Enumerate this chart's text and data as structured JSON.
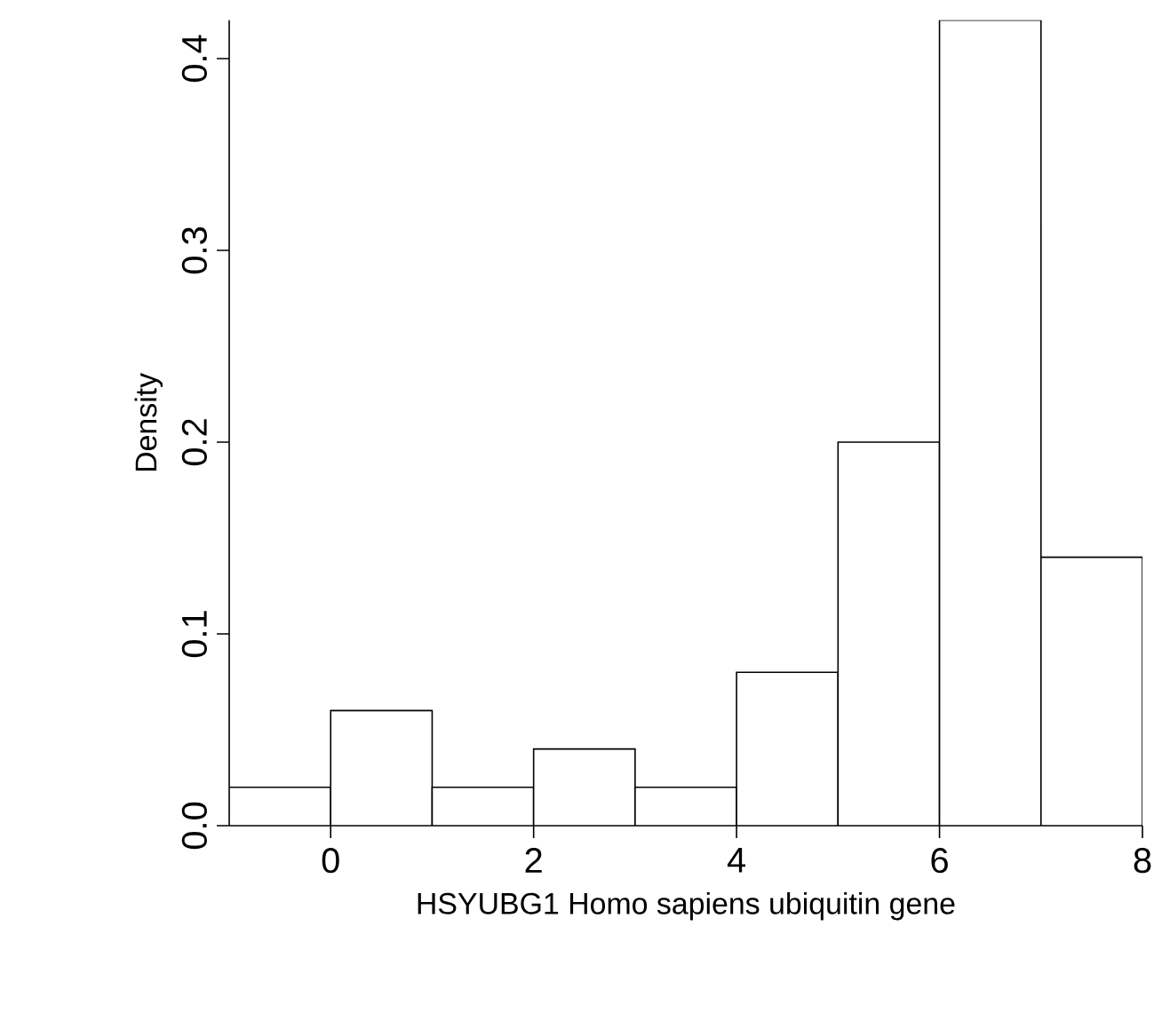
{
  "chart_data": {
    "type": "histogram",
    "xlabel": "HSYUBG1 Homo sapiens ubiquitin gene",
    "ylabel": "Density",
    "bins": [
      -1,
      0,
      1,
      2,
      3,
      4,
      5,
      6,
      7,
      8
    ],
    "values": [
      0.02,
      0.06,
      0.02,
      0.04,
      0.02,
      0.08,
      0.2,
      0.42,
      0.14
    ],
    "color": "#ffffff",
    "xlim": [
      -1,
      8
    ],
    "ylim": [
      0,
      0.42
    ],
    "xticks": [
      0,
      2,
      4,
      6,
      8
    ],
    "yticks": [
      {
        "value": 0,
        "label": "0.0"
      },
      0.1,
      0.2,
      0.3,
      0.4
    ],
    "grid": false
  }
}
